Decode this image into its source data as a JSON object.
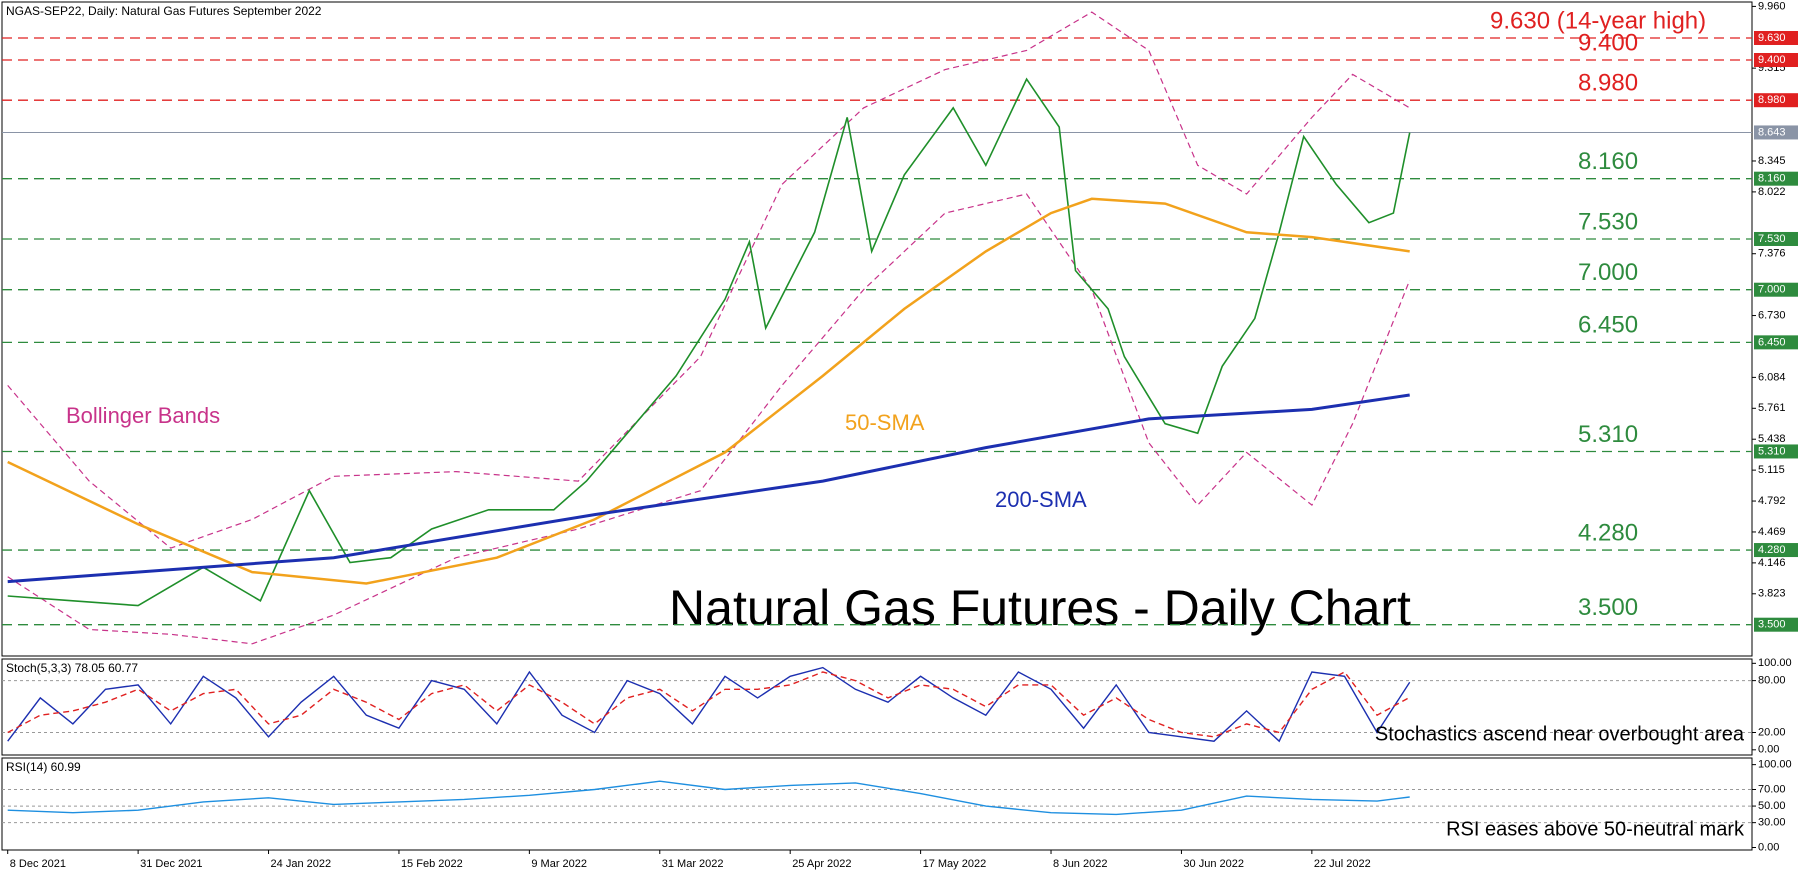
{
  "chart_data": [
    {
      "type": "line",
      "subtitle": "NGAS-SEP22, Daily:  Natural Gas Futures September 2022",
      "title": "Natural Gas Futures - Daily Chart",
      "xlim": [
        -0.7,
        214
      ],
      "ylim": [
        3.173,
        10.006
      ],
      "yticks": [
        {
          "value": 9.96,
          "label": "9.960"
        },
        {
          "value": 9.315,
          "label": "9.315"
        },
        {
          "value": 8.345,
          "label": "8.345"
        },
        {
          "value": 8.022,
          "label": "8.022"
        },
        {
          "value": 7.376,
          "label": "7.376"
        },
        {
          "value": 6.73,
          "label": "6.730"
        },
        {
          "value": 6.084,
          "label": "6.084"
        },
        {
          "value": 5.761,
          "label": "5.761"
        },
        {
          "value": 5.438,
          "label": "5.438"
        },
        {
          "value": 5.115,
          "label": "5.115"
        },
        {
          "value": 4.792,
          "label": "4.792"
        },
        {
          "value": 4.469,
          "label": "4.469"
        },
        {
          "value": 4.146,
          "label": "4.146"
        },
        {
          "value": 3.823,
          "label": "3.823"
        }
      ],
      "levels": [
        {
          "value": 9.63,
          "label": "9.630",
          "note": "9.630 (14-year high)",
          "color": "#e02020"
        },
        {
          "value": 9.4,
          "label": "9.400",
          "note": "9.400",
          "color": "#e02020"
        },
        {
          "value": 8.98,
          "label": "8.980",
          "note": "8.980",
          "color": "#e02020"
        },
        {
          "value": 8.16,
          "label": "8.160",
          "note": "8.160",
          "color": "#2e8b3e"
        },
        {
          "value": 7.53,
          "label": "7.530",
          "note": "7.530",
          "color": "#2e8b3e"
        },
        {
          "value": 7.0,
          "label": "7.000",
          "note": "7.000",
          "color": "#2e8b3e"
        },
        {
          "value": 6.45,
          "label": "6.450",
          "note": "6.450",
          "color": "#2e8b3e"
        },
        {
          "value": 5.31,
          "label": "5.310",
          "note": "5.310",
          "color": "#2e8b3e"
        },
        {
          "value": 4.28,
          "label": "4.280",
          "note": "4.280",
          "color": "#2e8b3e"
        },
        {
          "value": 3.5,
          "label": "3.500",
          "note": "3.500",
          "color": "#2e8b3e"
        }
      ],
      "current": {
        "value": 8.643,
        "label": "8.643",
        "color": "#8a94a6"
      },
      "series": [
        {
          "color": "#1f8f2a",
          "x": [
            0,
            8,
            16,
            24,
            31,
            37,
            42,
            47,
            52,
            59,
            67,
            71,
            76,
            82,
            88,
            91,
            93,
            99,
            103,
            106,
            110,
            116,
            120,
            125,
            129,
            131,
            135,
            137,
            142,
            146,
            149,
            153,
            156,
            159,
            163,
            167,
            170,
            172
          ],
          "values": [
            3.8,
            3.75,
            3.7,
            4.1,
            3.75,
            4.9,
            4.15,
            4.2,
            4.5,
            4.7,
            4.7,
            5.0,
            5.5,
            6.1,
            6.9,
            7.5,
            6.6,
            7.6,
            8.8,
            7.4,
            8.2,
            8.9,
            8.3,
            9.2,
            8.7,
            7.2,
            6.8,
            6.3,
            5.6,
            5.5,
            6.2,
            6.7,
            7.6,
            8.6,
            8.1,
            7.7,
            7.8,
            8.64
          ]
        },
        {
          "name": "50-SMA",
          "color": "#f2a21c",
          "x": [
            0,
            16,
            30,
            44,
            60,
            72,
            88,
            100,
            110,
            120,
            128,
            133,
            142,
            152,
            160,
            172
          ],
          "values": [
            5.2,
            4.55,
            4.05,
            3.93,
            4.2,
            4.6,
            5.3,
            6.1,
            6.8,
            7.4,
            7.8,
            7.95,
            7.9,
            7.6,
            7.55,
            7.4
          ]
        },
        {
          "name": "200-SMA",
          "color": "#1c2fb0",
          "x": [
            0,
            40,
            72,
            100,
            120,
            140,
            160,
            172
          ],
          "values": [
            3.95,
            4.2,
            4.65,
            5.0,
            5.35,
            5.65,
            5.75,
            5.9
          ]
        }
      ],
      "bollinger": {
        "name": "Bollinger Bands",
        "color": "#c8338a",
        "x": [
          0,
          10,
          20,
          30,
          40,
          55,
          70,
          85,
          95,
          105,
          115,
          125,
          133,
          140,
          146,
          152,
          160,
          165,
          172
        ],
        "upper": [
          6.0,
          5.0,
          4.3,
          4.6,
          5.05,
          5.1,
          5.0,
          6.3,
          8.1,
          8.9,
          9.3,
          9.5,
          9.9,
          9.5,
          8.3,
          8.0,
          8.8,
          9.25,
          8.9
        ],
        "lower": [
          4.0,
          3.45,
          3.4,
          3.3,
          3.6,
          4.2,
          4.5,
          4.9,
          6.0,
          7.0,
          7.8,
          8.0,
          7.0,
          5.4,
          4.75,
          5.3,
          4.75,
          5.6,
          7.1
        ]
      }
    },
    {
      "type": "line",
      "title": "Stoch(5,3,3) 78.05 60.77",
      "note": "Stochastics ascend near overbought area",
      "xlim": [
        -0.7,
        214
      ],
      "ylim": [
        -6,
        105
      ],
      "yticks": [
        {
          "value": 100,
          "label": "100.00"
        },
        {
          "value": 80,
          "label": "80.00"
        },
        {
          "value": 20,
          "label": "20.00"
        },
        {
          "value": 0,
          "label": "0.00"
        }
      ],
      "levels": [
        80,
        20
      ],
      "series": [
        {
          "color": "#1c2fb0",
          "x": [
            0,
            4,
            8,
            12,
            16,
            20,
            24,
            28,
            32,
            36,
            40,
            44,
            48,
            52,
            56,
            60,
            64,
            68,
            72,
            76,
            80,
            84,
            88,
            92,
            96,
            100,
            104,
            108,
            112,
            116,
            120,
            124,
            128,
            132,
            136,
            140,
            144,
            148,
            152,
            156,
            160,
            164,
            168,
            172
          ],
          "values": [
            10,
            60,
            30,
            70,
            75,
            30,
            85,
            60,
            15,
            55,
            85,
            40,
            25,
            80,
            70,
            30,
            90,
            40,
            20,
            80,
            65,
            30,
            85,
            60,
            85,
            95,
            70,
            55,
            85,
            60,
            40,
            90,
            70,
            25,
            75,
            20,
            15,
            10,
            45,
            10,
            90,
            85,
            20,
            78.05
          ]
        },
        {
          "color": "#e02020",
          "dashed": true,
          "x": [
            0,
            4,
            8,
            12,
            16,
            20,
            24,
            28,
            32,
            36,
            40,
            44,
            48,
            52,
            56,
            60,
            64,
            68,
            72,
            76,
            80,
            84,
            88,
            92,
            96,
            100,
            104,
            108,
            112,
            116,
            120,
            124,
            128,
            132,
            136,
            140,
            144,
            148,
            152,
            156,
            160,
            164,
            168,
            172
          ],
          "values": [
            20,
            40,
            45,
            55,
            70,
            45,
            65,
            70,
            30,
            40,
            70,
            55,
            35,
            65,
            75,
            45,
            75,
            55,
            30,
            60,
            70,
            45,
            70,
            70,
            75,
            90,
            80,
            60,
            75,
            70,
            50,
            75,
            75,
            40,
            60,
            35,
            20,
            15,
            30,
            20,
            70,
            90,
            40,
            60.77
          ]
        }
      ]
    },
    {
      "type": "line",
      "title": "RSI(14) 60.99",
      "note": "RSI eases above 50-neutral mark",
      "xlim": [
        -0.7,
        214
      ],
      "ylim": [
        -3,
        108
      ],
      "yticks": [
        {
          "value": 100,
          "label": "100.00"
        },
        {
          "value": 70,
          "label": "70.00"
        },
        {
          "value": 50,
          "label": "50.00"
        },
        {
          "value": 30,
          "label": "30.00"
        },
        {
          "value": 0,
          "label": "0.00"
        }
      ],
      "levels": [
        70,
        50,
        30
      ],
      "xticks": [
        {
          "value": 0,
          "label": "8 Dec 2021"
        },
        {
          "value": 16,
          "label": "31 Dec 2021"
        },
        {
          "value": 32,
          "label": "24 Jan 2022"
        },
        {
          "value": 48,
          "label": "15 Feb 2022"
        },
        {
          "value": 64,
          "label": "9 Mar 2022"
        },
        {
          "value": 80,
          "label": "31 Mar 2022"
        },
        {
          "value": 96,
          "label": "25 Apr 2022"
        },
        {
          "value": 112,
          "label": "17 May 2022"
        },
        {
          "value": 128,
          "label": "8 Jun 2022"
        },
        {
          "value": 144,
          "label": "30 Jun 2022"
        },
        {
          "value": 160,
          "label": "22 Jul 2022"
        }
      ],
      "series": [
        {
          "color": "#1e8fe0",
          "x": [
            0,
            8,
            16,
            24,
            32,
            40,
            48,
            56,
            64,
            72,
            80,
            88,
            96,
            104,
            112,
            120,
            128,
            136,
            144,
            152,
            160,
            168,
            172
          ],
          "values": [
            45,
            42,
            45,
            55,
            60,
            52,
            55,
            58,
            63,
            70,
            80,
            70,
            75,
            78,
            65,
            50,
            42,
            40,
            45,
            62,
            58,
            56,
            60.99
          ]
        }
      ]
    }
  ]
}
